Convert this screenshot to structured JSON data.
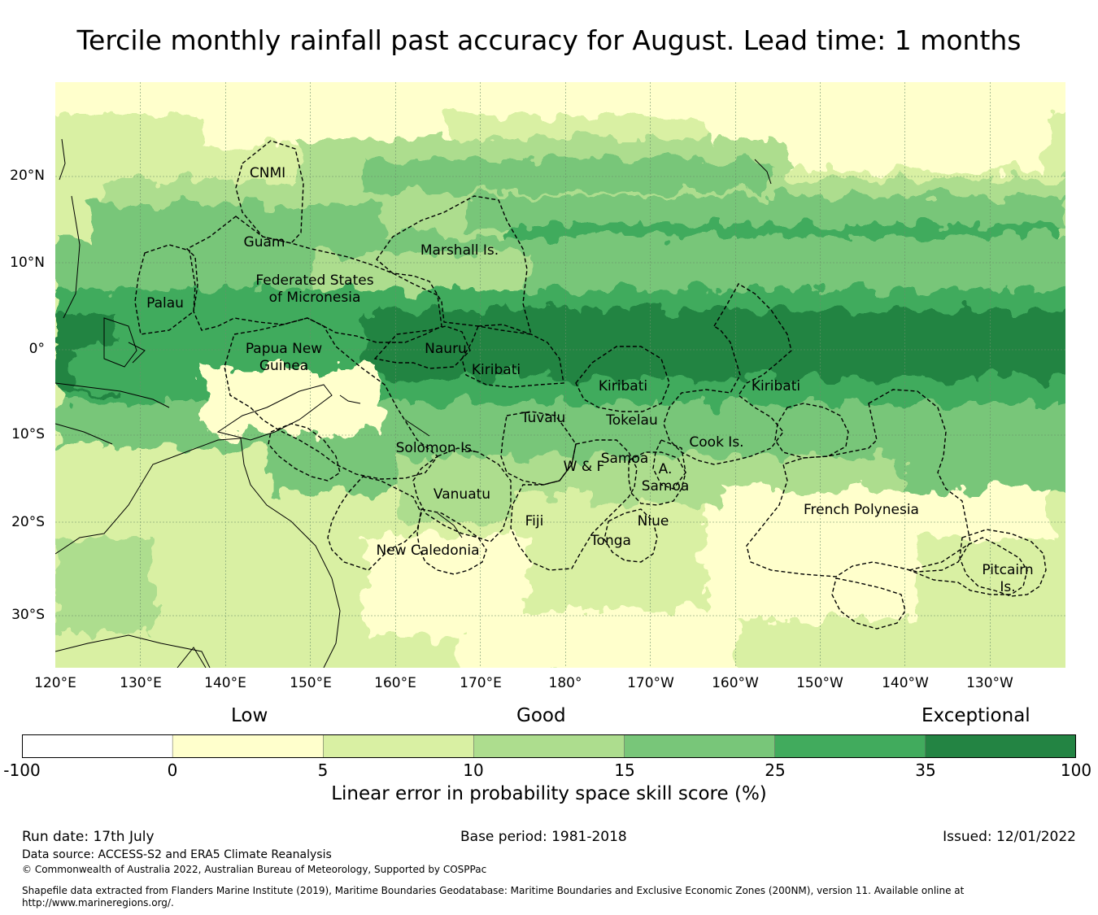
{
  "title": "Tercile monthly rainfall past accuracy for August. Lead time: 1 months",
  "map": {
    "lon_labels": [
      "120°E",
      "130°E",
      "140°E",
      "150°E",
      "160°E",
      "170°E",
      "180°",
      "170°W",
      "160°W",
      "150°W",
      "140°W",
      "130°W"
    ],
    "lat_labels": [
      "20°N",
      "10°N",
      "0°",
      "10°S",
      "20°S",
      "30°S"
    ],
    "regions": [
      {
        "id": "cnmi",
        "lines": [
          "CNMI"
        ]
      },
      {
        "id": "guam",
        "lines": [
          "Guam"
        ]
      },
      {
        "id": "marshall",
        "lines": [
          "Marshall Is."
        ]
      },
      {
        "id": "fsm",
        "lines": [
          "Federated States",
          "of Micronesia"
        ]
      },
      {
        "id": "palau",
        "lines": [
          "Palau"
        ]
      },
      {
        "id": "png",
        "lines": [
          "Papua New",
          "Guinea"
        ]
      },
      {
        "id": "nauru",
        "lines": [
          "Nauru"
        ]
      },
      {
        "id": "kiribati-w",
        "lines": [
          "Kiribati"
        ]
      },
      {
        "id": "kiribati-c",
        "lines": [
          "Kiribati"
        ]
      },
      {
        "id": "kiribati-e",
        "lines": [
          "Kiribati"
        ]
      },
      {
        "id": "tuvalu",
        "lines": [
          "Tuvalu"
        ]
      },
      {
        "id": "tokelau",
        "lines": [
          "Tokelau"
        ]
      },
      {
        "id": "cook",
        "lines": [
          "Cook Is."
        ]
      },
      {
        "id": "solomon",
        "lines": [
          "Solomon Is."
        ]
      },
      {
        "id": "samoa",
        "lines": [
          "Samoa"
        ]
      },
      {
        "id": "wf",
        "lines": [
          "W & F"
        ]
      },
      {
        "id": "asamoa",
        "lines": [
          "A.",
          "Samoa"
        ]
      },
      {
        "id": "vanuatu",
        "lines": [
          "Vanuatu"
        ]
      },
      {
        "id": "fiji",
        "lines": [
          "Fiji"
        ]
      },
      {
        "id": "niue",
        "lines": [
          "Niue"
        ]
      },
      {
        "id": "tonga",
        "lines": [
          "Tonga"
        ]
      },
      {
        "id": "frpoly",
        "lines": [
          "French Polynesia"
        ]
      },
      {
        "id": "newcal",
        "lines": [
          "New Caledonia"
        ]
      },
      {
        "id": "pitcairn",
        "lines": [
          "Pitcairn",
          "Is."
        ]
      }
    ]
  },
  "legend": {
    "categories": [
      "Low",
      "Good",
      "Exceptional"
    ],
    "ticks": [
      "-100",
      "0",
      "5",
      "10",
      "15",
      "25",
      "35",
      "100"
    ],
    "colors": [
      "#ffffff",
      "#ffffcc",
      "#d9f0a3",
      "#addd8e",
      "#78c679",
      "#41ab5d",
      "#238443"
    ],
    "title": "Linear error in probability space skill score (%)"
  },
  "footer": {
    "run_date": "Run date: 17th July",
    "base_period": "Base period: 1981-2018",
    "issued": "Issued: 12/01/2022",
    "data_source": "Data source: ACCESS-S2 and ERA5 Climate Reanalysis",
    "copyright": "© Commonwealth of Australia 2022, Australian Bureau of Meteorology, Supported by COSPPac",
    "shapefile_1": "Shapefile data extracted from Flanders Marine Institute (2019), Maritime Boundaries Geodatabase: Maritime Boundaries and Exclusive Economic Zones (200NM), version 11. Available online at",
    "shapefile_2": "http://www.marineregions.org/."
  }
}
